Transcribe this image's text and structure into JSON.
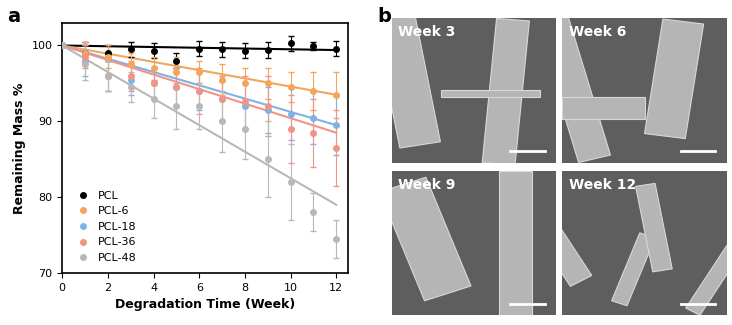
{
  "chart_data": {
    "type": "line",
    "panel": "a",
    "xlabel": "Degradation Time (Week)",
    "ylabel": "Remaining Mass %",
    "x": [
      0,
      1,
      2,
      3,
      4,
      5,
      6,
      7,
      8,
      9,
      10,
      11,
      12
    ],
    "xlim": [
      0,
      12.5
    ],
    "xticks": [
      0,
      2,
      4,
      6,
      8,
      10,
      12
    ],
    "ylim": [
      70,
      103
    ],
    "yticks": [
      70,
      80,
      90,
      100
    ],
    "grid": false,
    "legend": "lower left",
    "marker": "circle",
    "series": [
      {
        "name": "PCL",
        "color": "#000000",
        "values": [
          100,
          99,
          99,
          99.5,
          99.3,
          98,
          99.6,
          99.5,
          99.3,
          99.4,
          100.3,
          99.9,
          99.6
        ],
        "errors": [
          0,
          1.5,
          1,
          1,
          1,
          1,
          1,
          1,
          1,
          1,
          1,
          0.5,
          1
        ],
        "trend": [
          100,
          99.4
        ]
      },
      {
        "name": "PCL-6",
        "color": "#f5a55a",
        "values": [
          100,
          99,
          98.5,
          97.5,
          97,
          96.5,
          96.5,
          95.5,
          95,
          95,
          94.5,
          94,
          93.5
        ],
        "errors": [
          0,
          1.5,
          1.5,
          1.5,
          1.5,
          2,
          1.5,
          2,
          2,
          2,
          2,
          2.5,
          3
        ],
        "trend": [
          100,
          93.5
        ]
      },
      {
        "name": "PCL-18",
        "color": "#7fb2e5",
        "values": [
          100,
          98,
          96,
          95.5,
          95,
          94.5,
          94,
          93,
          92,
          91.5,
          91,
          90.5,
          89.5
        ],
        "errors": [
          0,
          2,
          2,
          2,
          2,
          2.5,
          2.5,
          3,
          3,
          3,
          3.5,
          3.5,
          4
        ],
        "trend": [
          100,
          89.5
        ]
      },
      {
        "name": "PCL-36",
        "color": "#f29485",
        "values": [
          100,
          98.5,
          96,
          96,
          95,
          94.5,
          94,
          93,
          92.5,
          92,
          89,
          88.5,
          86.5
        ],
        "errors": [
          0,
          1.5,
          2,
          2,
          2,
          2.5,
          3,
          3,
          3.5,
          4,
          4.5,
          4.5,
          5
        ],
        "trend": [
          100,
          88.5
        ]
      },
      {
        "name": "PCL-48",
        "color": "#b8b8b8",
        "values": [
          100,
          97.5,
          96,
          94.5,
          93,
          92,
          92,
          90,
          89,
          85,
          82,
          78,
          74.5
        ],
        "errors": [
          0,
          2,
          2,
          2,
          2.5,
          3,
          3,
          4,
          4,
          5,
          5,
          2.5,
          2.5
        ],
        "trend": [
          100,
          79
        ]
      }
    ]
  },
  "images": {
    "panel": "b",
    "labels": [
      "Week 3",
      "Week 6",
      "Week 9",
      "Week 12"
    ]
  }
}
